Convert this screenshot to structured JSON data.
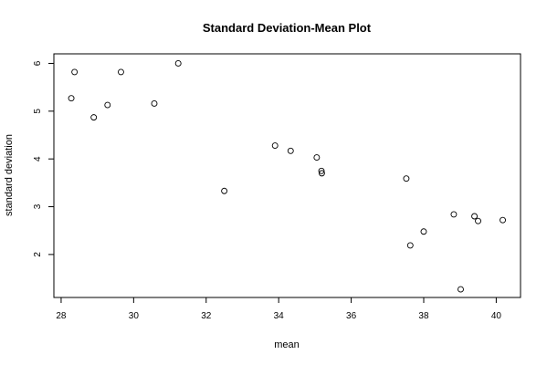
{
  "chart_data": {
    "type": "scatter",
    "title": "Standard Deviation-Mean Plot",
    "xlabel": "mean",
    "ylabel": "standard deviation",
    "xlim": [
      27.8,
      40.67
    ],
    "ylim": [
      1.1,
      6.2
    ],
    "x_ticks": [
      28,
      30,
      32,
      34,
      36,
      38,
      40
    ],
    "y_ticks": [
      2,
      3,
      4,
      5,
      6
    ],
    "grid": false,
    "points": [
      {
        "x": 28.28,
        "y": 5.27
      },
      {
        "x": 28.37,
        "y": 5.82
      },
      {
        "x": 28.9,
        "y": 4.87
      },
      {
        "x": 29.28,
        "y": 5.13
      },
      {
        "x": 29.65,
        "y": 5.82
      },
      {
        "x": 30.57,
        "y": 5.16
      },
      {
        "x": 31.23,
        "y": 6.0
      },
      {
        "x": 32.5,
        "y": 3.33
      },
      {
        "x": 33.9,
        "y": 4.28
      },
      {
        "x": 34.33,
        "y": 4.17
      },
      {
        "x": 35.05,
        "y": 4.03
      },
      {
        "x": 35.18,
        "y": 3.75
      },
      {
        "x": 35.19,
        "y": 3.7
      },
      {
        "x": 37.52,
        "y": 3.59
      },
      {
        "x": 37.63,
        "y": 2.19
      },
      {
        "x": 38.0,
        "y": 2.48
      },
      {
        "x": 38.83,
        "y": 2.84
      },
      {
        "x": 39.02,
        "y": 1.27
      },
      {
        "x": 39.4,
        "y": 2.8
      },
      {
        "x": 39.5,
        "y": 2.7
      },
      {
        "x": 40.18,
        "y": 2.72
      }
    ]
  }
}
